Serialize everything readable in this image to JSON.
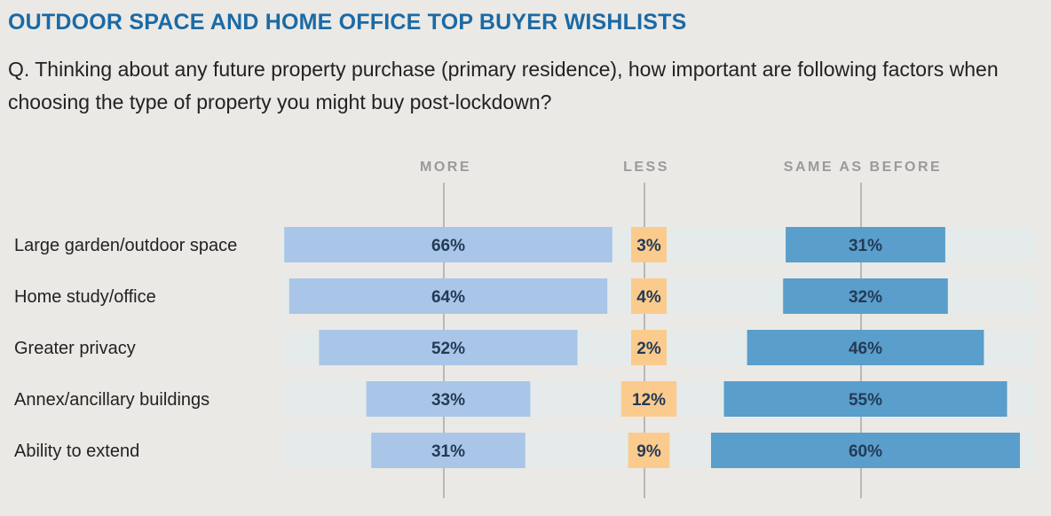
{
  "title": "OUTDOOR SPACE AND HOME OFFICE TOP BUYER WISHLISTS",
  "question": "Q. Thinking about any future property purchase (primary residence), how important are following factors when choosing the type of property you might buy post-lockdown?",
  "colors": {
    "more": "#a9c6e8",
    "less": "#fbcb8d",
    "same": "#5a9ecb",
    "row_band": "#e5ebea",
    "title": "#1a6aa6"
  },
  "chart_data": {
    "type": "bar",
    "categories": [
      "Large garden/outdoor space",
      "Home study/office",
      "Greater privacy",
      "Annex/ancillary buildings",
      "Ability to extend"
    ],
    "series": [
      {
        "name": "MORE",
        "values": [
          66,
          64,
          52,
          33,
          31
        ],
        "labels": [
          "66%",
          "64%",
          "52%",
          "33%",
          "31%"
        ]
      },
      {
        "name": "LESS",
        "values": [
          3,
          4,
          2,
          12,
          9
        ],
        "labels": [
          "3%",
          "4%",
          "2%",
          "12%",
          "9%"
        ]
      },
      {
        "name": "SAME AS BEFORE",
        "values": [
          31,
          32,
          46,
          55,
          60
        ],
        "labels": [
          "31%",
          "32%",
          "46%",
          "55%",
          "60%"
        ]
      }
    ],
    "unit": "%"
  }
}
